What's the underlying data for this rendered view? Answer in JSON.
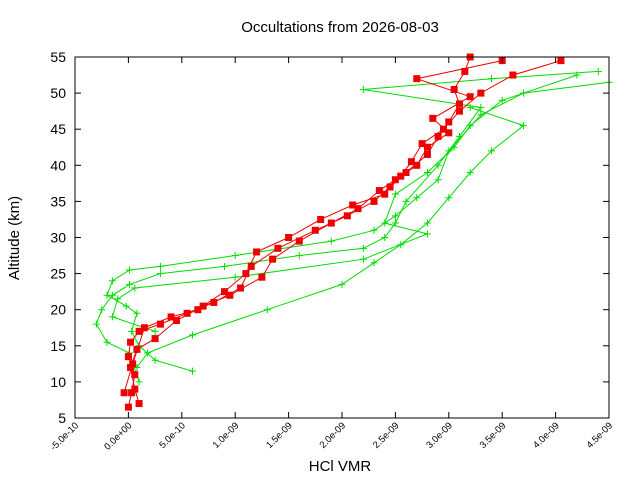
{
  "chart_data": {
    "type": "line",
    "title": "Occultations from 2026-08-03",
    "xlabel": "HCl VMR",
    "ylabel": "Altitude (km)",
    "xlim": [
      -5e-10,
      4.5e-09
    ],
    "ylim": [
      5,
      55
    ],
    "xticks": [
      "-5.0e-10",
      "0.0e+00",
      "5.0e-10",
      "1.0e-09",
      "1.5e-09",
      "2.0e-09",
      "2.5e-09",
      "3.0e-09",
      "3.5e-09",
      "4.0e-09",
      "4.5e-09"
    ],
    "yticks": [
      "5",
      "10",
      "15",
      "20",
      "25",
      "30",
      "35",
      "40",
      "45",
      "50",
      "55"
    ],
    "grid": false,
    "legend": "none",
    "colors": {
      "green": "#00dd00",
      "red": "#ee0000"
    },
    "series": [
      {
        "color": "#00dd00",
        "marker": "plus",
        "x": [
          6e-10,
          2.5e-10,
          1e-10,
          3e-11,
          8e-11,
          -2e-11,
          -2e-10,
          -1.5e-10,
          1e-11,
          3e-10,
          1e-09,
          1.9e-09,
          2.3e-09,
          2.5e-09,
          2.7e-09,
          2.9e-09,
          3e-09,
          3.3e-09,
          3.7e-09,
          4.5e-09
        ],
        "y": [
          11.5,
          13,
          15,
          17,
          19.5,
          20.5,
          22,
          24,
          25.5,
          26,
          27.5,
          29.5,
          31,
          33,
          35.5,
          38,
          42,
          47,
          50,
          51.5
        ]
      },
      {
        "color": "#00dd00",
        "marker": "plus",
        "x": [
          1e-10,
          1e-11,
          -2e-10,
          -3e-10,
          -2.5e-10,
          -1.5e-10,
          1e-11,
          3e-10,
          9e-10,
          1.6e-09,
          2.2e-09,
          2.4e-09,
          2.5e-09,
          2.6e-09,
          2.9e-09,
          3.1e-09,
          3.3e-09,
          2.2e-09,
          3.4e-09,
          4.4e-09
        ],
        "y": [
          10,
          14,
          15.5,
          18,
          20,
          22,
          23.5,
          25,
          26,
          27.5,
          28.5,
          30,
          32,
          35,
          40,
          44,
          48,
          50.5,
          52,
          53
        ]
      },
      {
        "color": "#00dd00",
        "marker": "plus",
        "x": [
          8e-11,
          1.8e-10,
          6e-10,
          1.3e-09,
          2e-09,
          2.3e-09,
          2.55e-09,
          2.8e-09,
          3e-09,
          3.2e-09,
          3.4e-09,
          3.7e-09,
          3.2e-09
        ],
        "y": [
          12,
          14,
          16.5,
          20,
          23.5,
          26.5,
          29,
          32,
          35.5,
          39,
          42,
          45.5,
          48
        ]
      },
      {
        "color": "#00dd00",
        "marker": "plus",
        "x": [
          2.5e-10,
          -1.5e-10,
          -1e-10,
          6e-11,
          1e-09,
          2.2e-09,
          2.8e-09,
          2.4e-09,
          2.5e-09,
          2.8e-09,
          3.05e-09,
          3.2e-09,
          3.5e-09,
          4.2e-09
        ],
        "y": [
          17,
          19,
          21.5,
          23,
          24.5,
          27,
          30.5,
          32,
          36,
          39,
          42.5,
          45.5,
          49,
          52.5
        ]
      },
      {
        "color": "#ee0000",
        "marker": "square",
        "x": [
          0.0,
          3e-11,
          6e-11,
          0.0,
          2e-11,
          1e-10,
          3e-10,
          5.5e-10,
          8e-10,
          1.05e-09,
          1.15e-09,
          1.4e-09,
          1.75e-09,
          2.05e-09,
          2.3e-09,
          2.45e-09,
          2.6e-09,
          2.8e-09,
          2.9e-09,
          3e-09,
          3.1e-09,
          3.05e-09,
          3.15e-09,
          3.2e-09
        ],
        "y": [
          6.5,
          8.5,
          11,
          13.5,
          15.5,
          17,
          18,
          19.5,
          21,
          23,
          26,
          28.5,
          31,
          33,
          35,
          37,
          39,
          41.5,
          44,
          46,
          48.5,
          50.5,
          53,
          55
        ]
      },
      {
        "color": "#ee0000",
        "marker": "square",
        "x": [
          1e-10,
          6e-11,
          2e-11,
          8e-11,
          2.5e-10,
          4.5e-10,
          7e-10,
          9.5e-10,
          1.25e-09,
          1.35e-09,
          1.6e-09,
          1.9e-09,
          2.15e-09,
          2.35e-09,
          2.55e-09,
          2.65e-09,
          2.75e-09,
          2.95e-09,
          3.1e-09,
          3.3e-09,
          3.6e-09,
          4.05e-09
        ],
        "y": [
          7,
          9,
          12,
          14.5,
          16,
          18.5,
          20.5,
          22,
          24.5,
          27,
          29.5,
          32,
          34,
          36.5,
          38.5,
          40.5,
          43,
          45,
          47.5,
          50,
          52.5,
          54.5
        ]
      },
      {
        "color": "#ee0000",
        "marker": "square",
        "x": [
          -4e-11,
          4e-11,
          1.5e-10,
          4e-10,
          6.5e-10,
          9e-10,
          1.1e-09,
          1.2e-09,
          1.5e-09,
          1.8e-09,
          2.1e-09,
          2.4e-09,
          2.5e-09,
          2.7e-09,
          2.8e-09,
          3e-09,
          2.85e-09,
          3.2e-09,
          2.7e-09,
          3.5e-09
        ],
        "y": [
          8.5,
          12.5,
          17.5,
          19,
          20,
          22.5,
          25,
          28,
          30,
          32.5,
          34.5,
          36,
          38,
          40,
          42.5,
          44.5,
          46.5,
          49.5,
          52,
          54.5
        ]
      }
    ]
  }
}
